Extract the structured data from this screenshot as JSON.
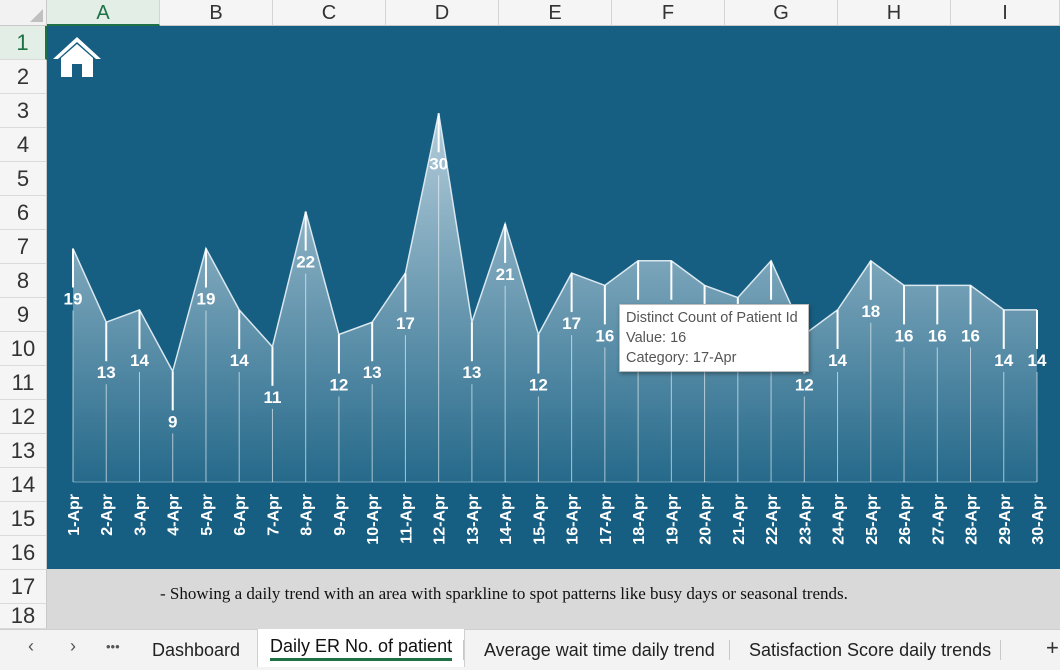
{
  "spreadsheet": {
    "columns": [
      "A",
      "B",
      "C",
      "D",
      "E",
      "F",
      "G",
      "H",
      "I"
    ],
    "active_column": "A",
    "rows": [
      "1",
      "2",
      "3",
      "4",
      "5",
      "6",
      "7",
      "8",
      "9",
      "10",
      "11",
      "12",
      "13",
      "14",
      "15",
      "16",
      "17",
      "18"
    ],
    "active_row": "1"
  },
  "icons": {
    "home": "home-icon"
  },
  "colors": {
    "panel": "#175f82",
    "accent": "#1e7145",
    "caption_bg": "#d9d9d9"
  },
  "chart_data": {
    "type": "area",
    "categories": [
      "1-Apr",
      "2-Apr",
      "3-Apr",
      "4-Apr",
      "5-Apr",
      "6-Apr",
      "7-Apr",
      "8-Apr",
      "9-Apr",
      "10-Apr",
      "11-Apr",
      "12-Apr",
      "13-Apr",
      "14-Apr",
      "15-Apr",
      "16-Apr",
      "17-Apr",
      "18-Apr",
      "19-Apr",
      "20-Apr",
      "21-Apr",
      "22-Apr",
      "23-Apr",
      "24-Apr",
      "25-Apr",
      "26-Apr",
      "27-Apr",
      "28-Apr",
      "29-Apr",
      "30-Apr"
    ],
    "values": [
      19,
      13,
      14,
      9,
      19,
      14,
      11,
      22,
      12,
      13,
      17,
      30,
      13,
      21,
      12,
      17,
      16,
      18,
      18,
      16,
      15,
      18,
      12,
      14,
      18,
      16,
      16,
      16,
      14,
      14
    ],
    "sparkline": true,
    "data_labels": true
  },
  "tooltip": {
    "title": "Distinct Count of Patient Id",
    "value_line": "Value: 16",
    "category_line": "Category: 17-Apr"
  },
  "caption": "- Showing a daily trend with an area with sparkline to spot patterns like busy days or seasonal trends.",
  "tabs": {
    "nav_prev": "‹",
    "nav_next": "›",
    "more": "•••",
    "items": [
      "Dashboard",
      "Daily ER No. of patient",
      "Average wait time daily trend",
      "Satisfaction Score daily trends"
    ],
    "active_index": 1,
    "add": "+"
  }
}
